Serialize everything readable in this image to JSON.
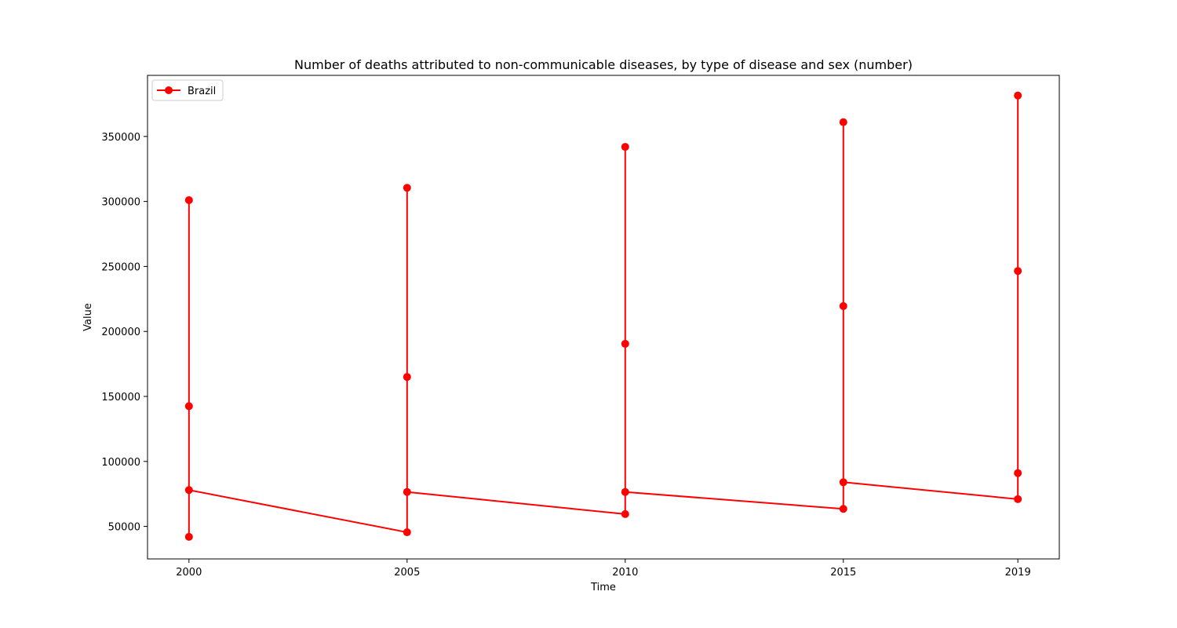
{
  "chart_data": {
    "type": "line",
    "title": "Number of deaths attributed to non-communicable diseases, by type of disease and sex (number)",
    "xlabel": "Time",
    "ylabel": "Value",
    "xlim": [
      1999.05,
      2019.95
    ],
    "ylim": [
      25000,
      397000
    ],
    "x_ticks": [
      2000,
      2005,
      2010,
      2015,
      2019
    ],
    "x_tick_labels": [
      "2000",
      "2005",
      "2010",
      "2015",
      "2019"
    ],
    "y_ticks": [
      50000,
      100000,
      150000,
      200000,
      250000,
      300000,
      350000
    ],
    "y_tick_labels": [
      "50000",
      "100000",
      "150000",
      "200000",
      "250000",
      "300000",
      "350000"
    ],
    "grid": false,
    "legend_position": "top-left",
    "series": [
      {
        "name": "Brazil",
        "color": "#ff0000",
        "marker": "circle",
        "points": [
          [
            2000,
            42000
          ],
          [
            2000,
            301000
          ],
          [
            2000,
            142500
          ],
          [
            2000,
            78000
          ],
          [
            2005,
            45500
          ],
          [
            2005,
            310500
          ],
          [
            2005,
            165000
          ],
          [
            2005,
            76500
          ],
          [
            2010,
            59500
          ],
          [
            2010,
            342000
          ],
          [
            2010,
            190500
          ],
          [
            2010,
            76500
          ],
          [
            2015,
            63500
          ],
          [
            2015,
            361000
          ],
          [
            2015,
            219500
          ],
          [
            2015,
            84000
          ],
          [
            2019,
            71000
          ],
          [
            2019,
            381500
          ],
          [
            2019,
            246500
          ],
          [
            2019,
            91000
          ]
        ]
      }
    ]
  }
}
